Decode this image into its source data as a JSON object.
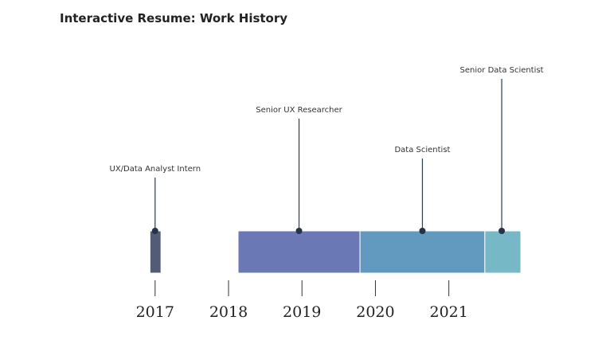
{
  "title": "Interactive Resume: Work History",
  "chart_data": {
    "type": "timeline",
    "title": "Interactive Resume: Work History",
    "x_axis": {
      "ticks": [
        "2017",
        "2018",
        "2019",
        "2020",
        "2021"
      ],
      "domain": [
        2016.2,
        2022.5
      ]
    },
    "roles": [
      {
        "name": "UX/Data Analyst Intern",
        "start": 2016.93,
        "end": 2017.08,
        "marker": 2017.0,
        "color": "#525c76"
      },
      {
        "name": "Senior UX Researcher",
        "start": 2018.13,
        "end": 2019.79,
        "marker": 2018.96,
        "color": "#6b78b6"
      },
      {
        "name": "Data Scientist",
        "start": 2019.79,
        "end": 2021.49,
        "marker": 2020.64,
        "color": "#6299bf"
      },
      {
        "name": "Senior Data Scientist",
        "start": 2021.49,
        "end": 2021.98,
        "marker": 2021.72,
        "color": "#76b8c6"
      }
    ]
  }
}
